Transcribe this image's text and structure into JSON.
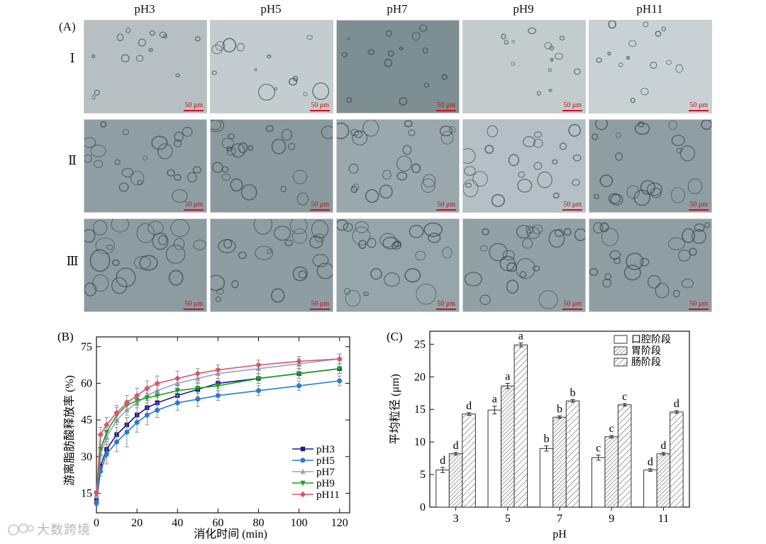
{
  "panel_a": {
    "label": "(A)",
    "columns": [
      "pH3",
      "pH5",
      "pH7",
      "pH9",
      "pH11"
    ],
    "rows": [
      "Ⅰ",
      "Ⅱ",
      "Ⅲ"
    ],
    "scale_bar": "50 μm"
  },
  "chart_data": [
    {
      "panel": "(B)",
      "type": "line",
      "xlabel": "消化时间 (min)",
      "ylabel": "游离脂肪酸释放率 (%)",
      "x": [
        0,
        2,
        5,
        10,
        15,
        20,
        25,
        30,
        40,
        50,
        60,
        80,
        100,
        120
      ],
      "xticks": [
        0,
        20,
        40,
        60,
        80,
        100,
        120
      ],
      "yticks": [
        15,
        30,
        45,
        60,
        75
      ],
      "xlim": [
        0,
        125
      ],
      "ylim": [
        7,
        79
      ],
      "legend_position": "bottom-right",
      "series": [
        {
          "name": "pH3",
          "marker": "square",
          "color": "#1a1a99",
          "values": [
            12,
            26,
            33,
            39,
            43,
            47,
            50,
            52,
            55,
            57.5,
            60,
            62,
            64,
            66
          ],
          "errors": [
            1,
            2,
            3,
            3,
            3,
            3,
            3,
            3,
            3,
            3,
            2,
            2,
            2,
            2
          ]
        },
        {
          "name": "pH5",
          "marker": "circle",
          "color": "#2a7ad8",
          "values": [
            11,
            24,
            31,
            36,
            40,
            44,
            47,
            49,
            52,
            53.5,
            55,
            57,
            59,
            61
          ],
          "errors": [
            1,
            2,
            4,
            4,
            6,
            4,
            4,
            3,
            3,
            3,
            2,
            2,
            2,
            2
          ]
        },
        {
          "name": "pH7",
          "marker": "triangle-up",
          "color": "#9f9fc8",
          "values": [
            14,
            31,
            38,
            45,
            49,
            52,
            55,
            57,
            60,
            62,
            64,
            66,
            68,
            70
          ],
          "errors": [
            1,
            2,
            2,
            2,
            2,
            2,
            2,
            2,
            2,
            2,
            2,
            2,
            2,
            2
          ]
        },
        {
          "name": "pH9",
          "marker": "triangle-down",
          "color": "#1ba11b",
          "values": [
            15,
            33,
            40,
            47,
            51,
            53,
            54,
            55,
            57,
            58,
            59,
            62,
            64,
            66
          ],
          "errors": [
            1,
            2,
            3,
            3,
            2,
            2,
            2,
            2,
            2,
            2,
            2,
            2,
            2,
            2
          ]
        },
        {
          "name": "pH11",
          "marker": "diamond",
          "color": "#d9546e",
          "values": [
            15,
            39,
            43,
            48,
            52,
            55,
            58,
            60,
            62,
            64,
            65.5,
            67.5,
            69,
            70
          ],
          "errors": [
            1,
            3,
            3,
            3,
            3,
            3,
            3,
            3,
            3,
            2,
            2,
            2,
            2,
            2
          ]
        }
      ]
    },
    {
      "panel": "(C)",
      "type": "bar",
      "xlabel": "pH",
      "ylabel": "平均粒径 (μm)",
      "categories": [
        "3",
        "5",
        "7",
        "9",
        "11"
      ],
      "ylim": [
        0,
        27
      ],
      "yticks": [
        0,
        5,
        10,
        15,
        20,
        25
      ],
      "legend_position": "top-right",
      "series": [
        {
          "name": "口腔阶段",
          "pattern": "none",
          "values": [
            5.7,
            14.9,
            9.0,
            7.6,
            5.7
          ],
          "errors": [
            0.4,
            0.6,
            0.4,
            0.4,
            0.2
          ],
          "letters": [
            "d",
            "a",
            "b",
            "c",
            "d"
          ]
        },
        {
          "name": "胃阶段",
          "pattern": "dense-hatch",
          "values": [
            8.2,
            18.6,
            13.8,
            10.8,
            8.2
          ],
          "errors": [
            0.2,
            0.4,
            0.2,
            0.2,
            0.2
          ],
          "letters": [
            "d",
            "a",
            "b",
            "c",
            "d"
          ]
        },
        {
          "name": "肠阶段",
          "pattern": "hatch",
          "values": [
            14.3,
            24.9,
            16.3,
            15.7,
            14.6
          ],
          "errors": [
            0.2,
            0.3,
            0.2,
            0.2,
            0.2
          ],
          "letters": [
            "d",
            "a",
            "b",
            "c",
            "d"
          ]
        }
      ]
    }
  ],
  "watermark": "大数跨境"
}
